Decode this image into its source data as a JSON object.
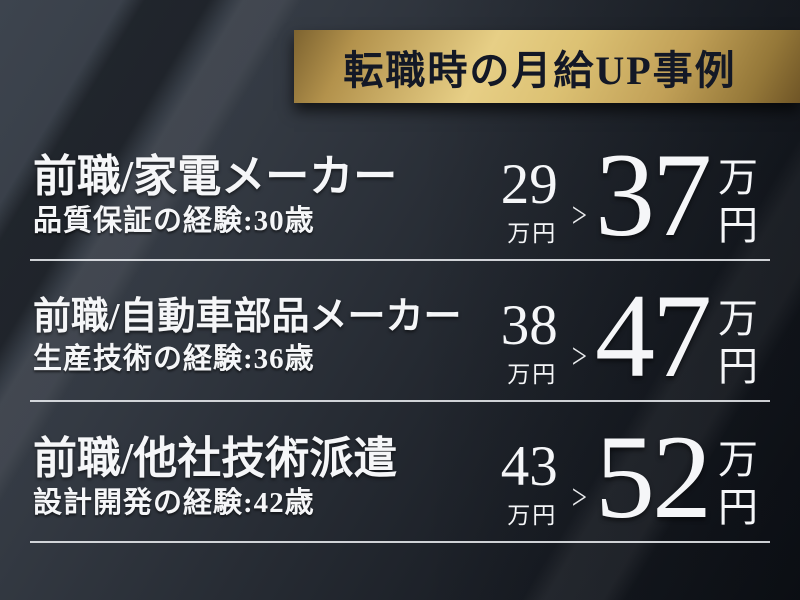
{
  "banner": {
    "title": "転職時の月給UP事例"
  },
  "rows": [
    {
      "title": "前職/家電メーカー",
      "subtitle": "品質保証の経験:30歳",
      "before_value": "29",
      "before_unit": "万円",
      "arrow": ">",
      "after_value": "37",
      "after_unit_top": "万",
      "after_unit_bottom": "円"
    },
    {
      "title": "前職/自動車部品メーカー",
      "subtitle": "生産技術の経験:36歳",
      "before_value": "38",
      "before_unit": "万円",
      "arrow": ">",
      "after_value": "47",
      "after_unit_top": "万",
      "after_unit_bottom": "円"
    },
    {
      "title": "前職/他社技術派遣",
      "subtitle": "設計開発の経験:42歳",
      "before_value": "43",
      "before_unit": "万円",
      "arrow": ">",
      "after_value": "52",
      "after_unit_top": "万",
      "after_unit_bottom": "円"
    }
  ],
  "colors": {
    "gold_light": "#e7cf86",
    "gold_dark": "#7d6330",
    "background_light": "#3d444e",
    "background_dark": "#0e1117",
    "text": "#f5f6f8",
    "banner_text": "#131826",
    "separator": "#eef1f4"
  }
}
